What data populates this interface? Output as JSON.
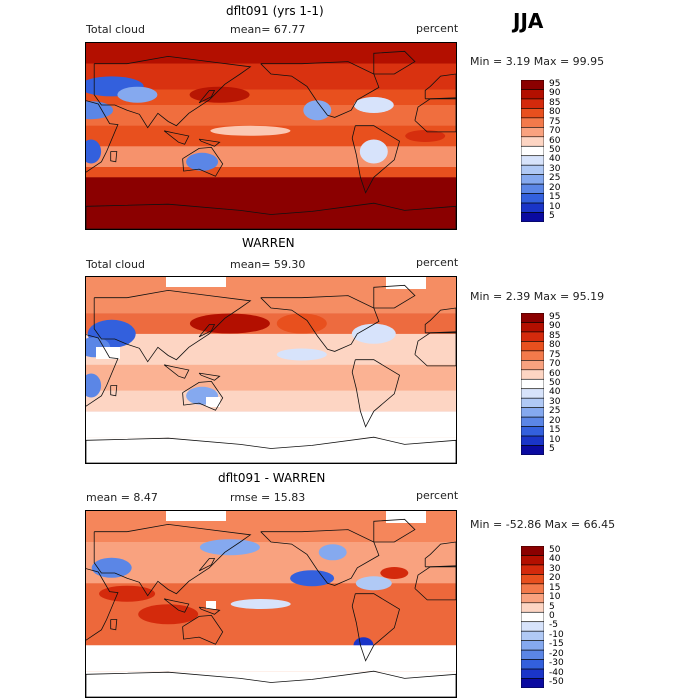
{
  "season": "JJA",
  "panels": [
    {
      "title": "dflt091 (yrs 1-1)",
      "left": "Total cloud",
      "mid": "mean=  67.77",
      "units": "percent",
      "stats": "Min =   3.19 Max =  99.95",
      "colorbar": [
        "95",
        "90",
        "85",
        "80",
        "75",
        "70",
        "60",
        "50",
        "40",
        "30",
        "25",
        "20",
        "15",
        "10",
        "5"
      ],
      "style": "high"
    },
    {
      "title": "WARREN",
      "left": "Total cloud",
      "mid": "mean=  59.30",
      "units": "percent",
      "stats": "Min =   2.39 Max =  95.19",
      "colorbar": [
        "95",
        "90",
        "85",
        "80",
        "75",
        "70",
        "60",
        "50",
        "40",
        "30",
        "25",
        "20",
        "15",
        "10",
        "5"
      ],
      "style": "obs"
    },
    {
      "title": "dflt091 - WARREN",
      "left": "mean =   8.47",
      "mid": "rmse =  15.83",
      "units": "percent",
      "stats": "Min = -52.86 Max =  66.45",
      "colorbar": [
        "50",
        "40",
        "30",
        "20",
        "15",
        "10",
        "5",
        "0",
        "-5",
        "-10",
        "-15",
        "-20",
        "-30",
        "-40",
        "-50"
      ],
      "style": "diff"
    }
  ],
  "chart_data": [
    {
      "type": "heatmap",
      "title": "dflt091 (yrs 1-1)",
      "variable": "Total cloud",
      "units": "percent",
      "mean": 67.77,
      "min": 3.19,
      "max": 99.95,
      "levels": [
        5,
        10,
        15,
        20,
        25,
        30,
        40,
        50,
        60,
        70,
        75,
        80,
        85,
        90,
        95
      ]
    },
    {
      "type": "heatmap",
      "title": "WARREN",
      "variable": "Total cloud",
      "units": "percent",
      "mean": 59.3,
      "min": 2.39,
      "max": 95.19,
      "levels": [
        5,
        10,
        15,
        20,
        25,
        30,
        40,
        50,
        60,
        70,
        75,
        80,
        85,
        90,
        95
      ]
    },
    {
      "type": "heatmap",
      "title": "dflt091 - WARREN",
      "units": "percent",
      "mean": 8.47,
      "rmse": 15.83,
      "min": -52.86,
      "max": 66.45,
      "levels": [
        -50,
        -40,
        -30,
        -20,
        -15,
        -10,
        -5,
        0,
        5,
        10,
        15,
        20,
        30,
        40,
        50
      ]
    }
  ]
}
